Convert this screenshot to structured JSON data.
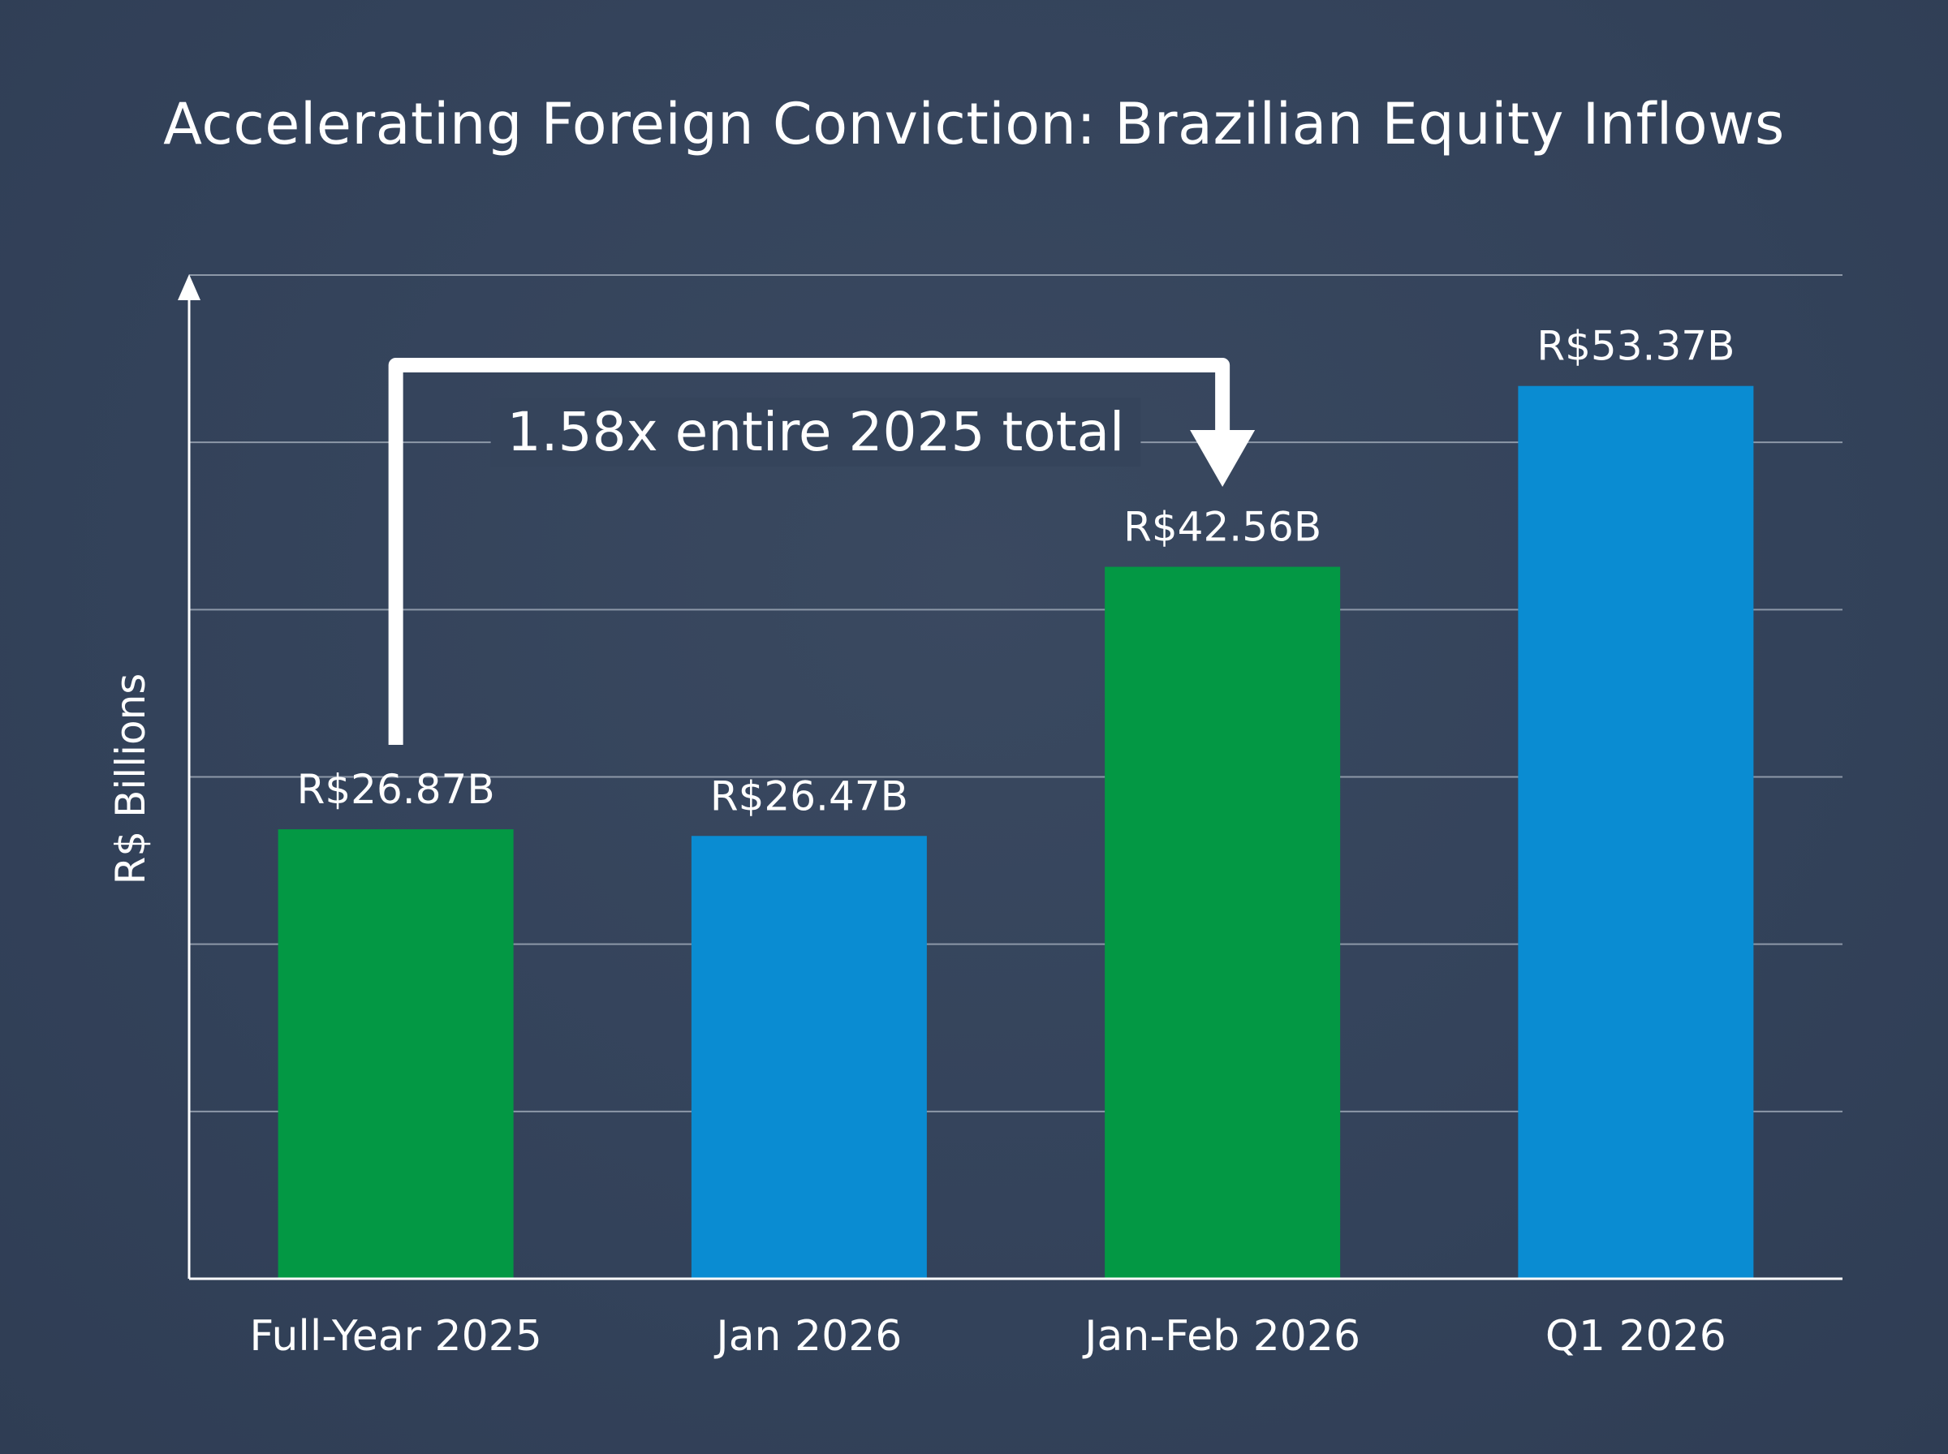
{
  "colors": {
    "background": "#34435a",
    "green": "#039844",
    "blue": "#0a8cd2",
    "text": "#ffffff",
    "gridline": "#8d98a8",
    "axis": "#ffffff"
  },
  "chart_data": {
    "type": "bar",
    "title": "Accelerating Foreign Conviction: Brazilian Equity Inflows",
    "xlabel": "",
    "ylabel": "R$ Billions",
    "categories": [
      "Full-Year 2025",
      "Jan 2026",
      "Jan-Feb 2026",
      "Q1 2026"
    ],
    "values": [
      26.87,
      26.47,
      42.56,
      53.37
    ],
    "value_labels": [
      "R$26.87B",
      "R$26.47B",
      "R$42.56B",
      "R$53.37B"
    ],
    "bar_colors": [
      "green",
      "blue",
      "green",
      "blue"
    ],
    "ylim": [
      0,
      60
    ],
    "grid": true,
    "gridlines_at": [
      10,
      20,
      30,
      40,
      50,
      60
    ],
    "annotation": {
      "text": "1.58x entire 2025 total",
      "from_category": "Full-Year 2025",
      "to_category": "Jan-Feb 2026"
    }
  }
}
